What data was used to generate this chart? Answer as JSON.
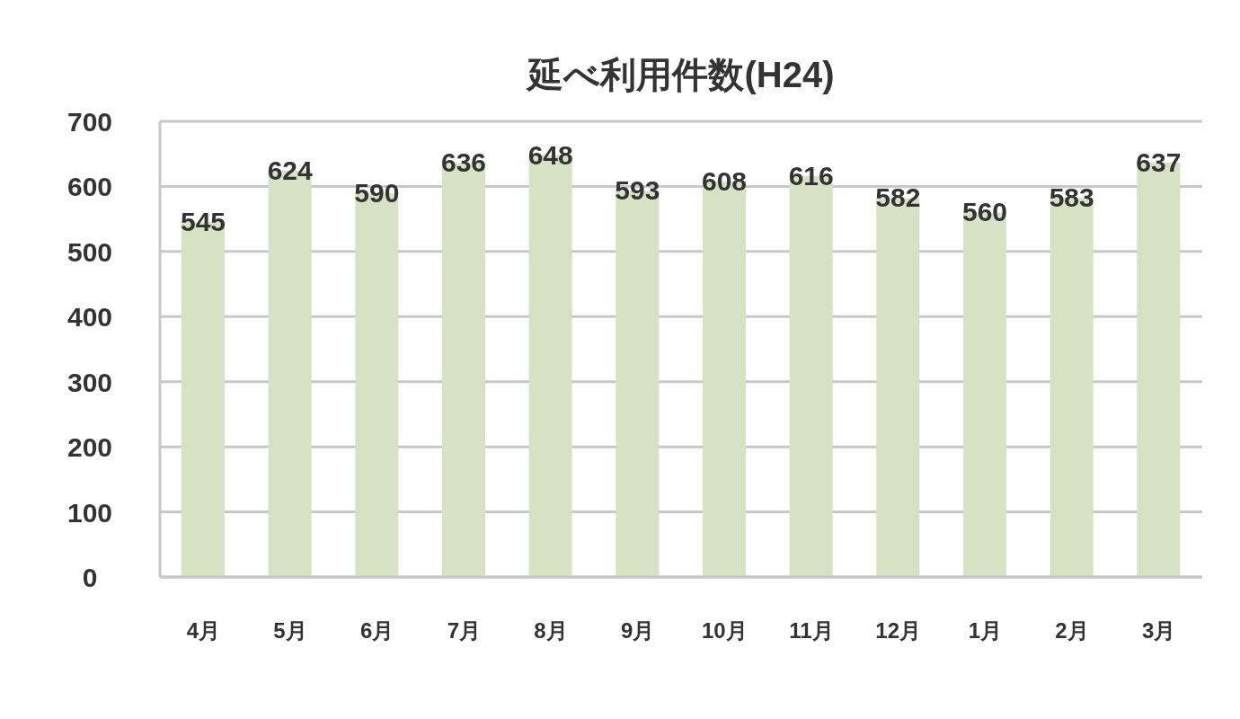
{
  "chart_data": {
    "type": "bar",
    "title": "延べ利用件数(H24)",
    "categories": [
      "4月",
      "5月",
      "6月",
      "7月",
      "8月",
      "9月",
      "10月",
      "11月",
      "12月",
      "1月",
      "2月",
      "3月"
    ],
    "values": [
      545,
      624,
      590,
      636,
      648,
      593,
      608,
      616,
      582,
      560,
      583,
      637
    ],
    "color": "#d7e2c4",
    "ylim": [
      0,
      700
    ],
    "yticks": [
      0,
      100,
      200,
      300,
      400,
      500,
      600,
      700
    ],
    "grid": "y",
    "data_labels": true
  }
}
